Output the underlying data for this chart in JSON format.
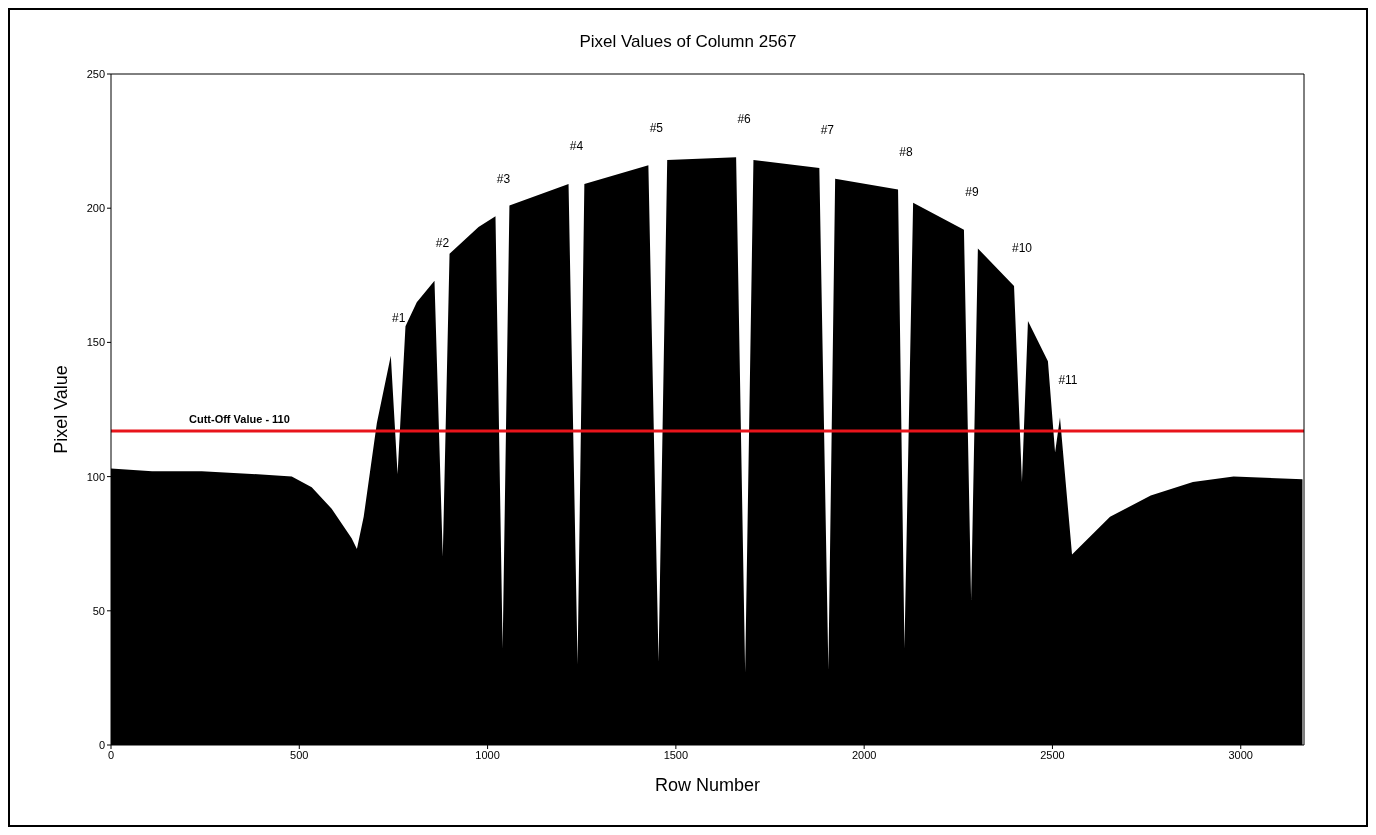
{
  "chart_data": {
    "type": "area",
    "title": "Pixel Values of Column 2567",
    "xlabel": "Row Number",
    "ylabel": "Pixel Value",
    "x": [
      0,
      109,
      241,
      374,
      480,
      533,
      586,
      639,
      653,
      671,
      706,
      743,
      761,
      782,
      812,
      859,
      881,
      899,
      976,
      1021,
      1040,
      1058,
      1215,
      1239,
      1257,
      1427,
      1454,
      1477,
      1660,
      1684,
      1706,
      1881,
      1905,
      1923,
      2090,
      2107,
      2130,
      2265,
      2284,
      2302,
      2398,
      2419,
      2435,
      2488,
      2507,
      2520,
      2552,
      2653,
      2761,
      2873,
      2981,
      3164
    ],
    "values": [
      103,
      102,
      102,
      101,
      100,
      96,
      88,
      77,
      73,
      85,
      120,
      145,
      101,
      156,
      165,
      173,
      70,
      183,
      193,
      197,
      36,
      201,
      209,
      30,
      209,
      216,
      31,
      218,
      219,
      27,
      218,
      215,
      28,
      211,
      207,
      36,
      202,
      192,
      54,
      185,
      171,
      98,
      158,
      143,
      109,
      122,
      71,
      85,
      93,
      98,
      100,
      99
    ],
    "color": "#000000",
    "xlim": [
      0,
      3168
    ],
    "ylim": [
      0,
      250
    ],
    "xticks": [
      0,
      500,
      1000,
      1500,
      2000,
      2500,
      3000
    ],
    "yticks": [
      0,
      50,
      100,
      150,
      200,
      250
    ],
    "ref_lines": [
      {
        "axis": "y",
        "value": 117,
        "label": "Cutt-Off Value - 110",
        "color": "#e8141b"
      }
    ],
    "annotations": [
      {
        "text": "#1",
        "x": 743,
        "y": 145
      },
      {
        "text": "#2",
        "x": 859,
        "y": 173
      },
      {
        "text": "#3",
        "x": 1021,
        "y": 197
      },
      {
        "text": "#4",
        "x": 1215,
        "y": 209
      },
      {
        "text": "#5",
        "x": 1427,
        "y": 216
      },
      {
        "text": "#6",
        "x": 1660,
        "y": 219
      },
      {
        "text": "#7",
        "x": 1881,
        "y": 215
      },
      {
        "text": "#8",
        "x": 2090,
        "y": 207
      },
      {
        "text": "#9",
        "x": 2265,
        "y": 192
      },
      {
        "text": "#10",
        "x": 2398,
        "y": 171
      },
      {
        "text": "#11",
        "x": 2520,
        "y": 122
      }
    ]
  }
}
